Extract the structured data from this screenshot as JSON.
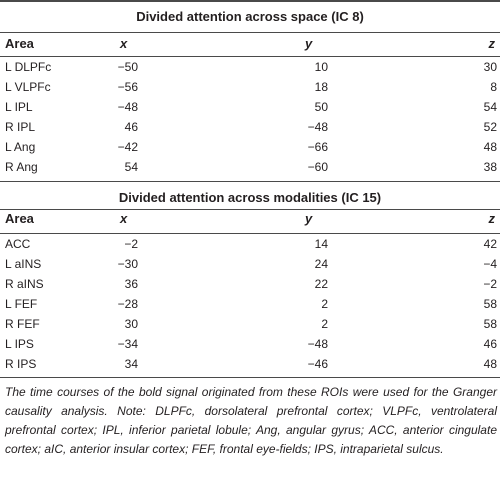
{
  "section1": {
    "title": "Divided attention across space (IC 8)",
    "headers": {
      "area": "Area",
      "x": "x",
      "y": "y",
      "z": "z"
    },
    "rows": [
      {
        "area": "L DLPFc",
        "x": "−50",
        "y": "10",
        "z": "30"
      },
      {
        "area": "L VLPFc",
        "x": "−56",
        "y": "18",
        "z": "8"
      },
      {
        "area": "L IPL",
        "x": "−48",
        "y": "50",
        "z": "54"
      },
      {
        "area": "R IPL",
        "x": "46",
        "y": "−48",
        "z": "52"
      },
      {
        "area": "L Ang",
        "x": "−42",
        "y": "−66",
        "z": "48"
      },
      {
        "area": "R Ang",
        "x": "54",
        "y": "−60",
        "z": "38"
      }
    ]
  },
  "section2": {
    "title": "Divided attention across modalities (IC 15)",
    "headers": {
      "area": "Area",
      "x": "x",
      "y": "y",
      "z": "z"
    },
    "rows": [
      {
        "area": "ACC",
        "x": "−2",
        "y": "14",
        "z": "42"
      },
      {
        "area": "L aINS",
        "x": "−30",
        "y": "24",
        "z": "−4"
      },
      {
        "area": "R aINS",
        "x": "36",
        "y": "22",
        "z": "−2"
      },
      {
        "area": "L FEF",
        "x": "−28",
        "y": "2",
        "z": "58"
      },
      {
        "area": "R FEF",
        "x": "30",
        "y": "2",
        "z": "58"
      },
      {
        "area": "L IPS",
        "x": "−34",
        "y": "−48",
        "z": "46"
      },
      {
        "area": "R IPS",
        "x": "34",
        "y": "−46",
        "z": "48"
      }
    ]
  },
  "footnote": "The time courses of the bold signal originated from these ROIs were used for the Granger causality analysis. Note: DLPFc, dorsolateral prefrontal cortex; VLPFc, ventrolateral prefrontal cortex; IPL, inferior parietal lobule; Ang, angular gyrus; ACC, anterior cingulate cortex; aIC, anterior insular cortex; FEF, frontal eye-fields; IPS, intraparietal sulcus."
}
